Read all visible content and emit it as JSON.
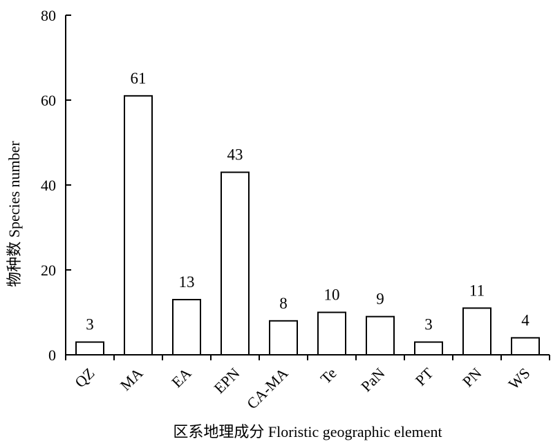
{
  "chart_data": {
    "type": "bar",
    "categories": [
      "QZ",
      "MA",
      "EA",
      "EPN",
      "CA-MA",
      "Te",
      "PaN",
      "PT",
      "PN",
      "WS"
    ],
    "values": [
      3,
      61,
      13,
      43,
      8,
      10,
      9,
      3,
      11,
      4
    ],
    "data_labels": [
      "3",
      "61",
      "13",
      "43",
      "8",
      "10",
      "9",
      "3",
      "11",
      "4"
    ],
    "xlabel": "区系地理成分 Floristic geographic element",
    "ylabel": "物种数 Species number",
    "ylim": [
      0,
      80
    ],
    "yticks": [
      "0",
      "20",
      "40",
      "60",
      "80"
    ],
    "grid": false,
    "legend": "none",
    "colors": {
      "bar_fill": "#ffffff",
      "bar_stroke": "#000000",
      "axis": "#000000"
    }
  }
}
